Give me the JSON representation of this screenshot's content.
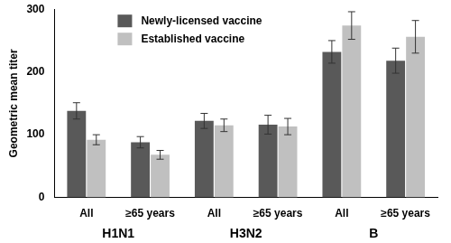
{
  "chart_data": {
    "type": "bar",
    "y_label": "Geometric mean titer",
    "categories": [
      "All",
      "≥65 years",
      "All",
      "≥65 years",
      "All",
      "≥65 years"
    ],
    "category_groups": [
      "H1N1",
      "H3N2",
      "B"
    ],
    "series": [
      {
        "name": "Newly-licensed vaccine",
        "color": "#595959",
        "values": [
          138,
          88,
          122,
          116,
          232,
          218
        ],
        "errors": [
          13,
          9,
          12,
          15,
          18,
          20
        ]
      },
      {
        "name": "Established vaccine",
        "color": "#c0c0c0",
        "values": [
          92,
          68,
          115,
          113,
          274,
          256
        ],
        "errors": [
          8,
          7,
          10,
          13,
          22,
          26
        ]
      }
    ],
    "ylim": [
      0,
      300
    ],
    "yticks": [
      0,
      100,
      200,
      300
    ],
    "grid": false,
    "legend": "upper left"
  }
}
